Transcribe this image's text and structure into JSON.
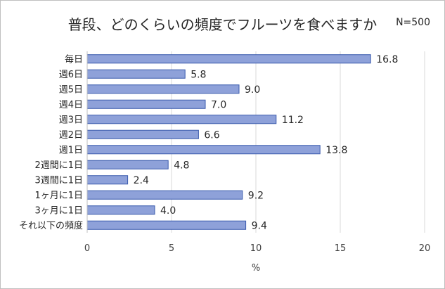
{
  "title": "普段、どのくらいの頻度でフルーツを食べますか",
  "sample_size": "N=500",
  "colors": {
    "bar_fill": "#8ea1d9",
    "bar_stroke": "#3a5aad",
    "grid": "#d9d9d9",
    "axis": "#bfbfbf"
  },
  "chart_data": {
    "type": "bar",
    "orientation": "horizontal",
    "categories": [
      "毎日",
      "週6日",
      "週5日",
      "週4日",
      "週3日",
      "週2日",
      "週1日",
      "2週間に1日",
      "3週間に1日",
      "1ヶ月に1日",
      "3ヶ月に1日",
      "それ以下の頻度"
    ],
    "values": [
      16.8,
      5.8,
      9.0,
      7.0,
      11.2,
      6.6,
      13.8,
      4.8,
      2.4,
      9.2,
      4.0,
      9.4
    ],
    "value_labels": [
      "16.8",
      "5.8",
      "9.0",
      "7.0",
      "11.2",
      "6.6",
      "13.8",
      "4.8",
      "2.4",
      "9.2",
      "4.0",
      "9.4"
    ],
    "xlabel": "%",
    "xlim": [
      0,
      20
    ],
    "xticks": [
      0,
      5,
      10,
      15,
      20
    ],
    "xtick_labels": [
      "0",
      "5",
      "10",
      "15",
      "20"
    ],
    "grid": "vertical",
    "legend": "none"
  }
}
